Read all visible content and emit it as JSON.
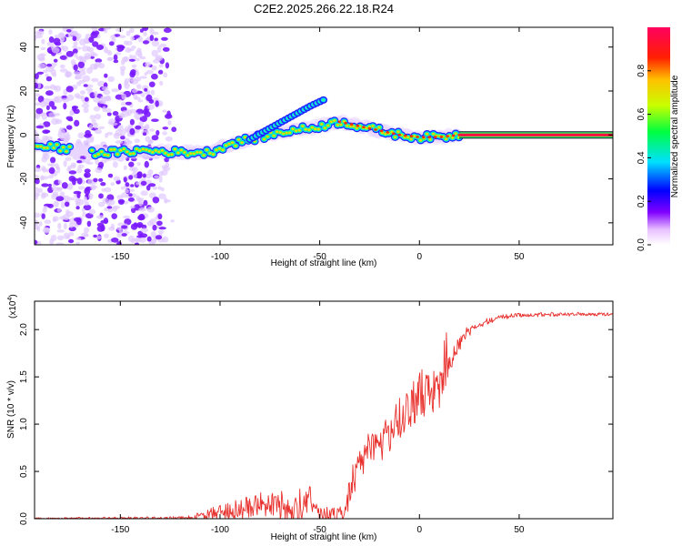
{
  "title": "C2E2.2025.266.22.18.R24",
  "chart_data": [
    {
      "type": "heatmap",
      "title": "C2E2.2025.266.22.18.R24",
      "xlabel": "Height of straight line (km)",
      "ylabel": "Frequency (Hz)",
      "xlim": [
        -193,
        97
      ],
      "ylim": [
        -50,
        49
      ],
      "xticks": [
        -150,
        -100,
        -50,
        0,
        50
      ],
      "yticks": [
        -40,
        -20,
        0,
        20,
        40
      ],
      "colorbar": {
        "label": "Normalized spectral amplitude",
        "range": [
          0,
          1
        ],
        "ticks": [
          0.0,
          0.2,
          0.4,
          0.6,
          0.8
        ],
        "tick_labels": [
          "0.0",
          "0.2",
          "0.4",
          "0.6",
          "0.8"
        ]
      },
      "ridge": {
        "height_km": [
          -193,
          -180,
          -165,
          -150,
          -140,
          -120,
          -105,
          -95,
          -85,
          -75,
          -65,
          -55,
          -45,
          -40,
          -30,
          -20,
          -10,
          0,
          10,
          20,
          97
        ],
        "frequency_hz": [
          -5,
          -6,
          -8,
          -8,
          -7,
          -8,
          -8,
          -4,
          -2,
          0,
          2,
          3,
          5,
          6,
          4,
          2,
          0,
          -1,
          -1,
          0,
          0
        ]
      },
      "secondary_branch": {
        "height_km": [
          -85,
          -75,
          -65,
          -55,
          -48
        ],
        "frequency_hz": [
          -2,
          3,
          8,
          13,
          16
        ]
      },
      "flat_band": {
        "from_km": 20,
        "to_km": 97,
        "frequency_hz": 0
      }
    },
    {
      "type": "line",
      "xlabel": "Height of straight line (km)",
      "ylabel": "SNR (10 * v/v)",
      "multiplier_label": "(x10",
      "multiplier_exp": "4",
      "multiplier_close": ")",
      "xlim": [
        -193,
        97
      ],
      "ylim": [
        0,
        2.3
      ],
      "xticks": [
        -150,
        -100,
        -50,
        0,
        50
      ],
      "yticks": [
        0.0,
        0.5,
        1.0,
        1.5,
        2.0
      ],
      "ytick_labels": [
        "0.0",
        "0.5",
        "1.0",
        "1.5",
        "2.0"
      ],
      "series": [
        {
          "name": "SNR",
          "color": "#e8302c",
          "envelope_x": [
            -193,
            -150,
            -125,
            -115,
            -105,
            -95,
            -85,
            -75,
            -65,
            -55,
            -50,
            -45,
            -40,
            -37,
            -33,
            -28,
            -22,
            -15,
            -10,
            -5,
            0,
            5,
            10,
            15,
            20,
            25,
            30,
            40,
            50,
            60,
            70,
            80,
            97
          ],
          "envelope_y": [
            0.01,
            0.02,
            0.02,
            0.03,
            0.1,
            0.2,
            0.22,
            0.35,
            0.25,
            0.35,
            0.15,
            0.12,
            0.12,
            0.25,
            0.6,
            0.85,
            0.95,
            1.1,
            1.3,
            1.4,
            1.5,
            1.55,
            1.6,
            1.75,
            1.95,
            2.05,
            2.1,
            2.15,
            2.18,
            2.18,
            2.18,
            2.18,
            2.18
          ],
          "noise_x": [
            -193,
            -120,
            -110,
            -95,
            -80,
            -70,
            -60,
            -50,
            -42,
            -38,
            -30,
            -20,
            -10,
            0,
            10,
            20,
            28,
            40,
            97
          ],
          "noise_y": [
            0.01,
            0.02,
            0.05,
            0.12,
            0.15,
            0.25,
            0.2,
            0.15,
            0.08,
            0.15,
            0.25,
            0.25,
            0.3,
            0.3,
            0.25,
            0.12,
            0.05,
            0.03,
            0.02
          ]
        }
      ]
    }
  ]
}
